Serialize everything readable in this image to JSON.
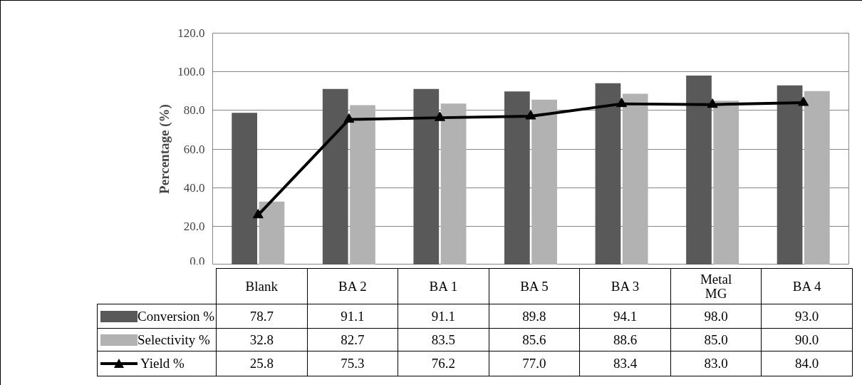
{
  "chart_data": {
    "type": "bar",
    "ylabel": "Percentage (%)",
    "categories": [
      "Blank",
      "BA 2",
      "BA 1",
      "BA 5",
      "BA 3",
      "Metal\nMG",
      "BA 4"
    ],
    "series": [
      {
        "name": "Conversion %",
        "color": "#595959",
        "values": [
          78.7,
          91.1,
          91.1,
          89.8,
          94.1,
          98.0,
          93.0
        ],
        "value_labels": [
          "78.7",
          "91.1",
          "91.1",
          "89.8",
          "94.1",
          "98.0",
          "93.0"
        ]
      },
      {
        "name": "Selectivity %",
        "color": "#b2b2b2",
        "values": [
          32.8,
          82.7,
          83.5,
          85.6,
          88.6,
          85.0,
          90.0
        ],
        "value_labels": [
          "32.8",
          "82.7",
          "83.5",
          "85.6",
          "88.6",
          "85.0",
          "90.0"
        ]
      },
      {
        "name": "Yield %",
        "type": "line",
        "color": "#000000",
        "marker": "triangle",
        "line_style": "solid",
        "values": [
          25.8,
          75.3,
          76.2,
          77.0,
          83.4,
          83.0,
          84.0
        ],
        "value_labels": [
          "25.8",
          "75.3",
          "76.2",
          "77.0",
          "83.4",
          "83.0",
          "84.0"
        ]
      }
    ],
    "ylim": [
      0,
      120
    ],
    "yticks": [
      {
        "value": 0,
        "label": "0.0"
      },
      {
        "value": 20,
        "label": "20.0"
      },
      {
        "value": 40,
        "label": "40.0"
      },
      {
        "value": 60,
        "label": "60.0"
      },
      {
        "value": 80,
        "label": "80.0"
      },
      {
        "value": 100,
        "label": "100.0"
      },
      {
        "value": 120,
        "label": "120.0"
      }
    ],
    "grid": "y",
    "legend": "bottom"
  }
}
